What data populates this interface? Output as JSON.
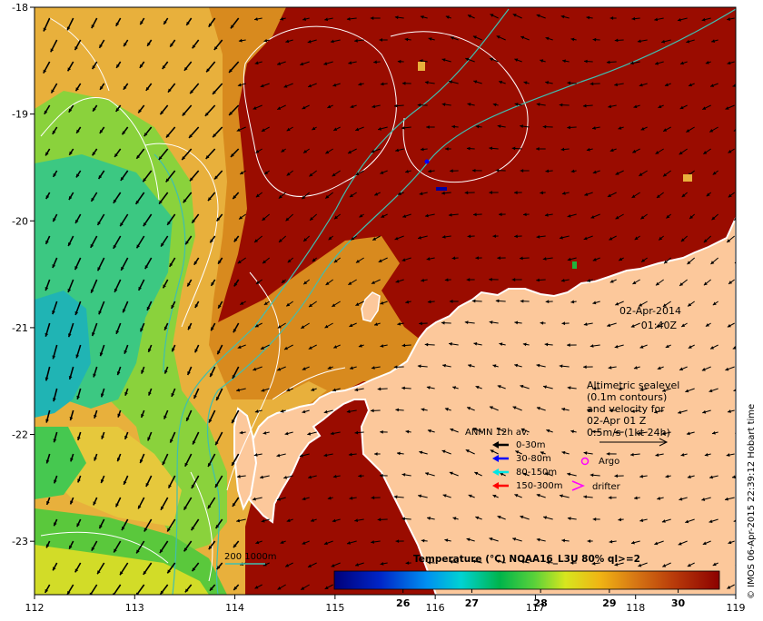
{
  "map": {
    "x_axis": {
      "min": 112,
      "max": 119,
      "ticks": [
        112,
        113,
        114,
        115,
        116,
        117,
        118,
        119
      ]
    },
    "y_axis": {
      "min": -23.5,
      "max": -18,
      "ticks": [
        -18,
        -19,
        -20,
        -21,
        -22,
        -23
      ]
    },
    "date": "02-Apr-2014",
    "time": "01:40Z",
    "altimetric_info": [
      "Altimetric sealevel",
      "(0.1m contours)",
      "and velocity for",
      "02-Apr 01 Z",
      "0.5m/s (1kt 24h)"
    ],
    "anmn": {
      "title": "ANMN 12h av.",
      "items": [
        {
          "label": "0-30m",
          "color": "#000000"
        },
        {
          "label": "30-80m",
          "color": "#0000ff"
        },
        {
          "label": "80-150m",
          "color": "#00e5e5"
        },
        {
          "label": "150-300m",
          "color": "#ff0000"
        }
      ]
    },
    "argo_label": "Argo",
    "argo_color": "#ff00ff",
    "drifter_label": "drifter",
    "drifter_color": "#ff00ff",
    "bathy_label": "200 1000m",
    "colorbar": {
      "title": "Temperature (°C) NOAA16_L3U 80% ql>=2",
      "ticks": [
        26,
        27,
        28,
        29,
        30
      ],
      "min": 25,
      "max": 30.6
    },
    "credit": "© IMOS 06-Apr-2015 22:39:12 Hobart time",
    "colors": {
      "land": "#fcc89b",
      "warm": "#9a0c00",
      "contour": "#ffffff",
      "bathy": "#3fbfb0"
    }
  }
}
